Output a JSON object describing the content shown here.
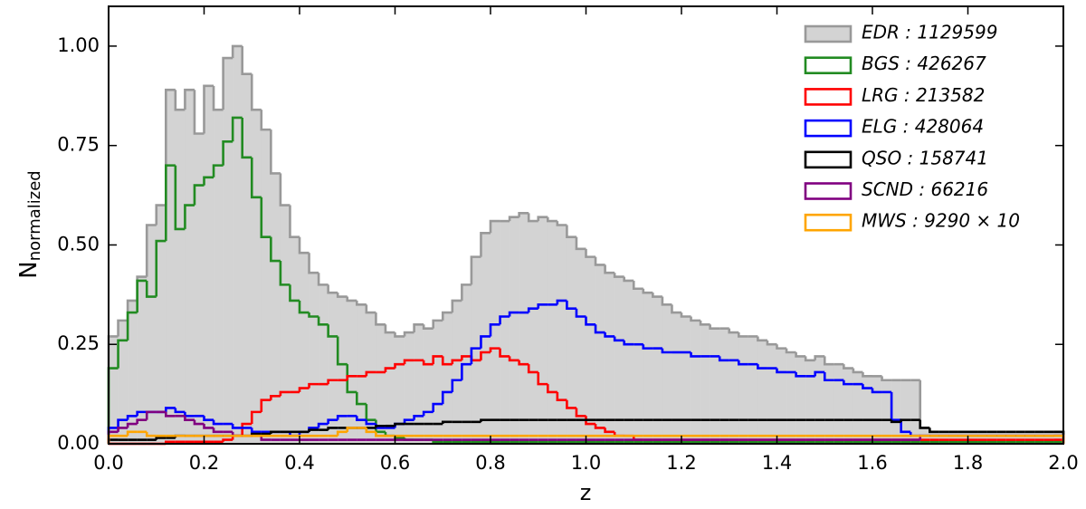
{
  "chart_data": {
    "type": "histogram",
    "xlabel": "z",
    "ylabel": "N",
    "ylabel_subscript": "normalized",
    "xlim": [
      0,
      2.0
    ],
    "ylim": [
      0,
      1.1
    ],
    "xticks": [
      {
        "value": 0,
        "label": "0.0"
      },
      0.2,
      0.4,
      0.6,
      0.8,
      {
        "value": 1,
        "label": "1.0"
      },
      1.2,
      1.4,
      1.6,
      1.8,
      {
        "value": 2,
        "label": "2.0"
      }
    ],
    "yticks": [
      {
        "value": 0,
        "label": "0.00"
      },
      {
        "value": 0.25,
        "label": "0.25"
      },
      {
        "value": 0.5,
        "label": "0.50"
      },
      {
        "value": 0.75,
        "label": "0.75"
      },
      {
        "value": 1,
        "label": "1.00"
      }
    ],
    "legend": "upper right",
    "bins": [
      0,
      0.02,
      0.04,
      0.06,
      0.08,
      0.1,
      0.12,
      0.14,
      0.16,
      0.18,
      0.2,
      0.22,
      0.24,
      0.26,
      0.28,
      0.3,
      0.32,
      0.34,
      0.36,
      0.38,
      0.4,
      0.42,
      0.44,
      0.46,
      0.48,
      0.5,
      0.52,
      0.54,
      0.56,
      0.58,
      0.6,
      0.62,
      0.64,
      0.66,
      0.68,
      0.7,
      0.72,
      0.74,
      0.76,
      0.78,
      0.8,
      0.82,
      0.84,
      0.86,
      0.88,
      0.9,
      0.92,
      0.94,
      0.96,
      0.98,
      1.0,
      1.02,
      1.04,
      1.06,
      1.08,
      1.1,
      1.12,
      1.14,
      1.16,
      1.18,
      1.2,
      1.22,
      1.24,
      1.26,
      1.28,
      1.3,
      1.32,
      1.34,
      1.36,
      1.38,
      1.4,
      1.42,
      1.44,
      1.46,
      1.48,
      1.5,
      1.52,
      1.54,
      1.56,
      1.58,
      1.6,
      1.62,
      1.64,
      1.66,
      1.68,
      1.7,
      1.72,
      1.74,
      1.76,
      1.78,
      1.8,
      1.82,
      1.84,
      1.86,
      1.88,
      1.9,
      1.92,
      1.94,
      1.96,
      1.98,
      2.0
    ],
    "series": [
      {
        "name": "EDR : 1129599",
        "color": "#d3d3d3",
        "edgecolor": "#999999",
        "filled": true,
        "values": [
          0.27,
          0.31,
          0.36,
          0.42,
          0.55,
          0.6,
          0.89,
          0.84,
          0.89,
          0.78,
          0.9,
          0.84,
          0.97,
          1.0,
          0.93,
          0.84,
          0.79,
          0.68,
          0.6,
          0.52,
          0.48,
          0.43,
          0.4,
          0.38,
          0.37,
          0.36,
          0.35,
          0.33,
          0.3,
          0.28,
          0.27,
          0.28,
          0.3,
          0.29,
          0.31,
          0.33,
          0.36,
          0.4,
          0.47,
          0.53,
          0.56,
          0.56,
          0.57,
          0.58,
          0.56,
          0.57,
          0.56,
          0.55,
          0.52,
          0.49,
          0.47,
          0.45,
          0.43,
          0.42,
          0.41,
          0.39,
          0.38,
          0.37,
          0.35,
          0.33,
          0.32,
          0.31,
          0.3,
          0.29,
          0.29,
          0.28,
          0.27,
          0.27,
          0.26,
          0.25,
          0.24,
          0.23,
          0.22,
          0.21,
          0.22,
          0.2,
          0.2,
          0.19,
          0.18,
          0.17,
          0.17,
          0.16,
          0.16,
          0.16,
          0.16,
          0.04,
          0.03,
          0.03,
          0.03,
          0.03,
          0.03,
          0.03,
          0.03,
          0.03,
          0.03,
          0.03,
          0.03,
          0.03,
          0.03,
          0.03
        ]
      },
      {
        "name": "BGS : 426267",
        "color": "#228b22",
        "values": [
          0.19,
          0.26,
          0.33,
          0.41,
          0.37,
          0.51,
          0.7,
          0.54,
          0.6,
          0.65,
          0.67,
          0.7,
          0.76,
          0.82,
          0.72,
          0.62,
          0.52,
          0.46,
          0.4,
          0.36,
          0.33,
          0.32,
          0.3,
          0.27,
          0.2,
          0.13,
          0.1,
          0.06,
          0.03,
          0.02,
          0.015,
          0.01,
          0.01,
          0.01,
          0.005,
          0.005,
          0.005,
          0.005,
          0.005,
          0.005,
          0.005,
          0.005,
          0.005,
          0.005,
          0.005,
          0.005,
          0.005,
          0.005,
          0.005,
          0.005,
          0.005,
          0.005,
          0.005,
          0.005,
          0.005,
          0.005,
          0.005,
          0.005,
          0.005,
          0.005,
          0.005,
          0.005,
          0.005,
          0.005,
          0.005,
          0.005,
          0.005,
          0.005,
          0.005,
          0.005,
          0.005,
          0.005,
          0.005,
          0.005,
          0.005,
          0.005,
          0.005,
          0.005,
          0.005,
          0.005,
          0.005,
          0.005,
          0.005,
          0.005,
          0.005,
          0.005,
          0.005,
          0.005,
          0.005,
          0.005,
          0.005,
          0.005,
          0.005,
          0.005,
          0.005,
          0.005,
          0.005,
          0.005,
          0.005,
          0.005
        ]
      },
      {
        "name": "LRG : 213582",
        "color": "#ff0000",
        "values": [
          0,
          0,
          0,
          0,
          0,
          0,
          0.005,
          0.005,
          0.005,
          0.005,
          0.005,
          0.005,
          0.01,
          0.02,
          0.05,
          0.08,
          0.11,
          0.12,
          0.13,
          0.13,
          0.14,
          0.15,
          0.15,
          0.16,
          0.16,
          0.17,
          0.17,
          0.18,
          0.18,
          0.19,
          0.2,
          0.21,
          0.21,
          0.2,
          0.22,
          0.2,
          0.21,
          0.22,
          0.21,
          0.23,
          0.24,
          0.22,
          0.21,
          0.2,
          0.18,
          0.15,
          0.13,
          0.11,
          0.09,
          0.07,
          0.05,
          0.04,
          0.03,
          0.02,
          0.02,
          0.01,
          0.01,
          0.01,
          0.01,
          0.01,
          0.01,
          0.01,
          0.01,
          0.01,
          0.01,
          0.01,
          0.01,
          0.01,
          0.01,
          0.01,
          0.01,
          0.01,
          0.01,
          0.01,
          0.01,
          0.01,
          0.01,
          0.01,
          0.01,
          0.01,
          0.01,
          0.01,
          0.01,
          0.01,
          0.01,
          0.01,
          0.01,
          0.01,
          0.01,
          0.01,
          0.01,
          0.01,
          0.01,
          0.01,
          0.01,
          0.01,
          0.01,
          0.01,
          0.01,
          0.01
        ]
      },
      {
        "name": "ELG : 428064",
        "color": "#0000ff",
        "values": [
          0.04,
          0.06,
          0.07,
          0.08,
          0.08,
          0.08,
          0.09,
          0.08,
          0.07,
          0.07,
          0.06,
          0.05,
          0.05,
          0.04,
          0.04,
          0.03,
          0.03,
          0.03,
          0.03,
          0.02,
          0.03,
          0.04,
          0.05,
          0.06,
          0.07,
          0.07,
          0.06,
          0.05,
          0.04,
          0.04,
          0.05,
          0.06,
          0.07,
          0.08,
          0.1,
          0.13,
          0.16,
          0.2,
          0.24,
          0.27,
          0.3,
          0.32,
          0.33,
          0.33,
          0.34,
          0.35,
          0.35,
          0.36,
          0.34,
          0.32,
          0.3,
          0.28,
          0.27,
          0.26,
          0.25,
          0.25,
          0.24,
          0.24,
          0.23,
          0.23,
          0.23,
          0.22,
          0.22,
          0.22,
          0.21,
          0.21,
          0.2,
          0.2,
          0.19,
          0.19,
          0.18,
          0.18,
          0.17,
          0.17,
          0.18,
          0.16,
          0.16,
          0.15,
          0.15,
          0.14,
          0.13,
          0.13,
          0.06,
          0.03,
          0.02,
          0.02,
          0.02,
          0.02,
          0.02,
          0.02,
          0.02,
          0.02,
          0.02,
          0.02,
          0.02,
          0.02,
          0.02,
          0.02,
          0.02,
          0.02
        ]
      },
      {
        "name": "QSO : 158741",
        "color": "#000000",
        "values": [
          0.01,
          0.01,
          0.01,
          0.01,
          0.01,
          0.015,
          0.015,
          0.02,
          0.02,
          0.02,
          0.02,
          0.02,
          0.02,
          0.02,
          0.02,
          0.025,
          0.025,
          0.03,
          0.03,
          0.03,
          0.03,
          0.035,
          0.035,
          0.04,
          0.04,
          0.04,
          0.04,
          0.04,
          0.045,
          0.045,
          0.05,
          0.05,
          0.05,
          0.05,
          0.05,
          0.055,
          0.055,
          0.055,
          0.055,
          0.06,
          0.06,
          0.06,
          0.06,
          0.06,
          0.06,
          0.06,
          0.06,
          0.06,
          0.06,
          0.06,
          0.06,
          0.06,
          0.06,
          0.06,
          0.06,
          0.06,
          0.06,
          0.06,
          0.06,
          0.06,
          0.06,
          0.06,
          0.06,
          0.06,
          0.06,
          0.06,
          0.06,
          0.06,
          0.06,
          0.06,
          0.06,
          0.06,
          0.06,
          0.06,
          0.06,
          0.06,
          0.06,
          0.06,
          0.06,
          0.06,
          0.06,
          0.06,
          0.055,
          0.06,
          0.06,
          0.04,
          0.03,
          0.03,
          0.03,
          0.03,
          0.03,
          0.03,
          0.03,
          0.03,
          0.03,
          0.03,
          0.03,
          0.03,
          0.03,
          0.03
        ]
      },
      {
        "name": "SCND : 66216",
        "color": "#800080",
        "values": [
          0.03,
          0.04,
          0.05,
          0.06,
          0.08,
          0.08,
          0.07,
          0.07,
          0.06,
          0.05,
          0.04,
          0.03,
          0.03,
          0.02,
          0.02,
          0.02,
          0.01,
          0.01,
          0.01,
          0.01,
          0.01,
          0.01,
          0.01,
          0.01,
          0.01,
          0.01,
          0.01,
          0.01,
          0.01,
          0.01,
          0.01,
          0.01,
          0.01,
          0.01,
          0.01,
          0.01,
          0.01,
          0.01,
          0.01,
          0.01,
          0.01,
          0.01,
          0.01,
          0.01,
          0.01,
          0.01,
          0.01,
          0.01,
          0.01,
          0.01,
          0.01,
          0.01,
          0.01,
          0.01,
          0.01,
          0.01,
          0.01,
          0.01,
          0.01,
          0.01,
          0.01,
          0.01,
          0.01,
          0.01,
          0.01,
          0.01,
          0.01,
          0.01,
          0.01,
          0.01,
          0.01,
          0.01,
          0.01,
          0.01,
          0.01,
          0.01,
          0.01,
          0.01,
          0.01,
          0.01,
          0.01,
          0.01,
          0.01,
          0.01,
          0.01,
          0.02,
          0.02,
          0.02,
          0.02,
          0.02,
          0.02,
          0.02,
          0.02,
          0.02,
          0.02,
          0.02,
          0.02,
          0.02,
          0.02,
          0.02
        ]
      },
      {
        "name": "MWS : 9290 × 10",
        "color": "#ffa500",
        "values": [
          0.02,
          0.02,
          0.03,
          0.03,
          0.02,
          0.02,
          0.02,
          0.02,
          0.02,
          0.02,
          0.02,
          0.02,
          0.02,
          0.02,
          0.02,
          0.02,
          0.02,
          0.02,
          0.02,
          0.02,
          0.02,
          0.02,
          0.02,
          0.02,
          0.03,
          0.04,
          0.04,
          0.03,
          0.02,
          0.02,
          0.02,
          0.02,
          0.02,
          0.02,
          0.02,
          0.02,
          0.02,
          0.02,
          0.02,
          0.02,
          0.02,
          0.02,
          0.02,
          0.02,
          0.02,
          0.02,
          0.02,
          0.02,
          0.02,
          0.02,
          0.02,
          0.02,
          0.02,
          0.02,
          0.02,
          0.02,
          0.02,
          0.02,
          0.02,
          0.02,
          0.02,
          0.02,
          0.02,
          0.02,
          0.02,
          0.02,
          0.02,
          0.02,
          0.02,
          0.02,
          0.02,
          0.02,
          0.02,
          0.02,
          0.02,
          0.02,
          0.02,
          0.02,
          0.02,
          0.02,
          0.02,
          0.02,
          0.02,
          0.02,
          0.02,
          0.02,
          0.02,
          0.02,
          0.02,
          0.02,
          0.02,
          0.02,
          0.02,
          0.02,
          0.02,
          0.02,
          0.02,
          0.02,
          0.02,
          0.02
        ]
      }
    ]
  }
}
